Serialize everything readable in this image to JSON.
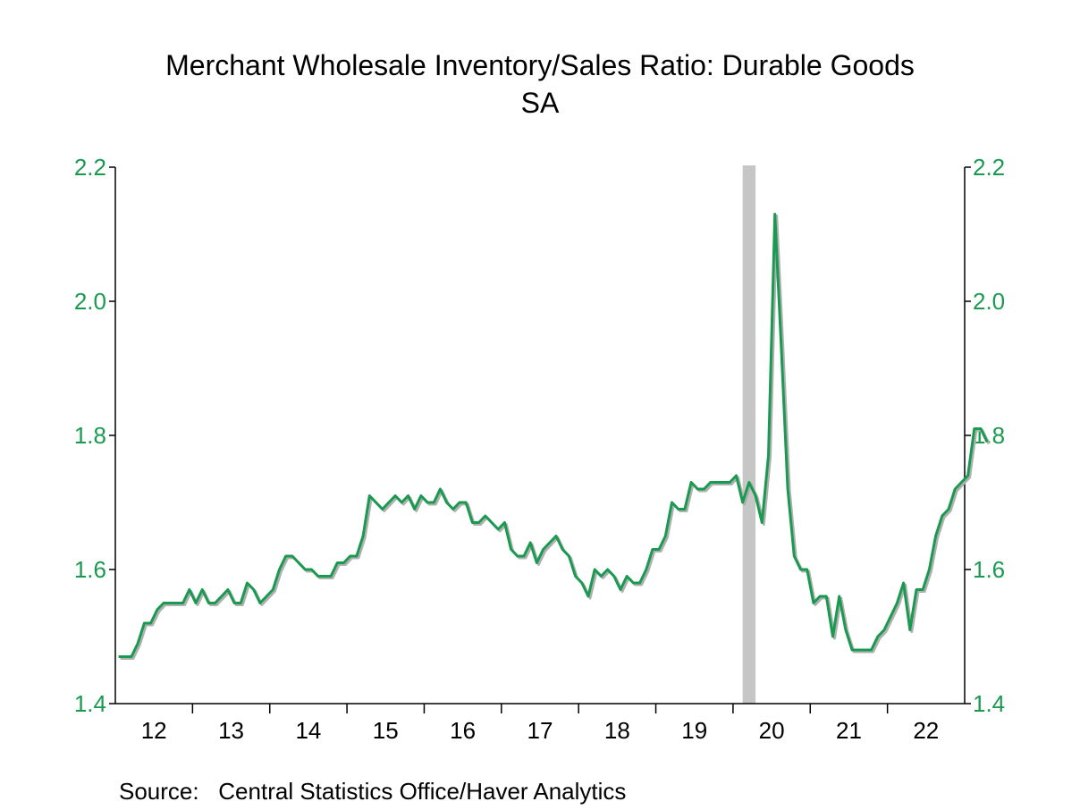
{
  "chart_data": {
    "type": "line",
    "title": "Merchant Wholesale Inventory/Sales Ratio: Durable Goods",
    "subtitle": "SA",
    "xlabel": "",
    "ylabel": "",
    "ylim": [
      1.4,
      2.2
    ],
    "y_ticks": [
      "1.4",
      "1.6",
      "1.8",
      "2.0",
      "2.2"
    ],
    "x_tick_labels": [
      "12",
      "13",
      "14",
      "15",
      "16",
      "17",
      "18",
      "19",
      "20",
      "21",
      "22"
    ],
    "grid": false,
    "dual_axis_labels": true,
    "recession_shading": [
      {
        "start": "2020-02",
        "end": "2020-04"
      }
    ],
    "colors": {
      "line": "#1a9a50",
      "shadow": "#b0b0b0",
      "axis_text": "#1a9a50",
      "axis": "#000000",
      "recession": "#c6c6c6"
    },
    "series": [
      {
        "start": "2012-01",
        "frequency": "monthly",
        "values": [
          1.47,
          1.47,
          1.47,
          1.49,
          1.52,
          1.52,
          1.54,
          1.55,
          1.55,
          1.55,
          1.55,
          1.57,
          1.55,
          1.57,
          1.55,
          1.55,
          1.56,
          1.57,
          1.55,
          1.55,
          1.58,
          1.57,
          1.55,
          1.56,
          1.57,
          1.6,
          1.62,
          1.62,
          1.61,
          1.6,
          1.6,
          1.59,
          1.59,
          1.59,
          1.61,
          1.61,
          1.62,
          1.62,
          1.65,
          1.71,
          1.7,
          1.69,
          1.7,
          1.71,
          1.7,
          1.71,
          1.69,
          1.71,
          1.7,
          1.7,
          1.72,
          1.7,
          1.69,
          1.7,
          1.7,
          1.67,
          1.67,
          1.68,
          1.67,
          1.66,
          1.67,
          1.63,
          1.62,
          1.62,
          1.64,
          1.61,
          1.63,
          1.64,
          1.65,
          1.63,
          1.62,
          1.59,
          1.58,
          1.56,
          1.6,
          1.59,
          1.6,
          1.59,
          1.57,
          1.59,
          1.58,
          1.58,
          1.6,
          1.63,
          1.63,
          1.65,
          1.7,
          1.69,
          1.69,
          1.73,
          1.72,
          1.72,
          1.73,
          1.73,
          1.73,
          1.73,
          1.74,
          1.7,
          1.73,
          1.71,
          1.67,
          1.77,
          2.13,
          1.93,
          1.72,
          1.62,
          1.6,
          1.6,
          1.55,
          1.56,
          1.56,
          1.5,
          1.56,
          1.51,
          1.48,
          1.48,
          1.48,
          1.48,
          1.5,
          1.51,
          1.53,
          1.55,
          1.58,
          1.51,
          1.57,
          1.57,
          1.6,
          1.65,
          1.68,
          1.69,
          1.72,
          1.73,
          1.74,
          1.81,
          1.81,
          1.79
        ]
      }
    ]
  },
  "source": {
    "label": "Source:",
    "text": "Central Statistics Office/Haver Analytics"
  }
}
